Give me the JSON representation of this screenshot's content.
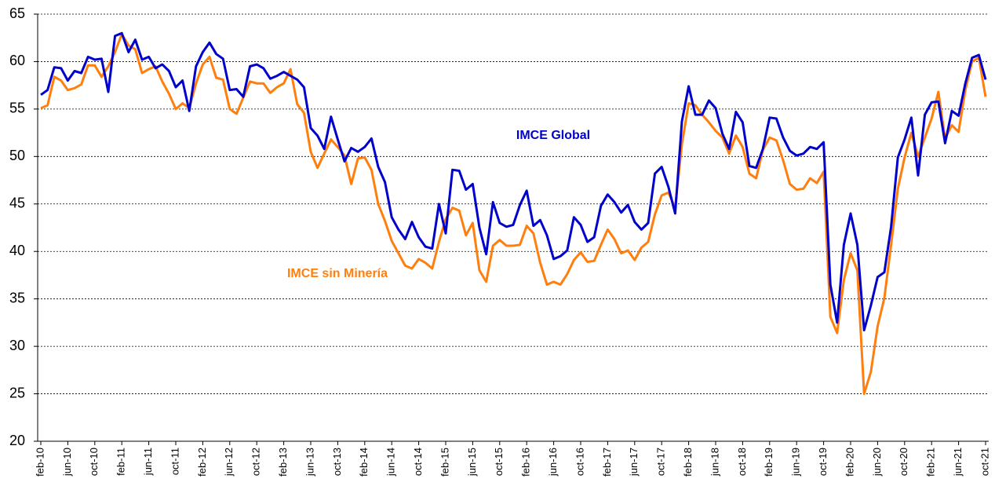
{
  "chart_data": {
    "type": "line",
    "categories": [
      "feb-10",
      null,
      null,
      null,
      "jun-10",
      null,
      null,
      null,
      "oct-10",
      null,
      null,
      null,
      "feb-11",
      null,
      null,
      null,
      "jun-11",
      null,
      null,
      null,
      "oct-11",
      null,
      null,
      null,
      "feb-12",
      null,
      null,
      null,
      "jun-12",
      null,
      null,
      null,
      "oct-12",
      null,
      null,
      null,
      "feb-13",
      null,
      null,
      null,
      "jun-13",
      null,
      null,
      null,
      "oct-13",
      null,
      null,
      null,
      "feb-14",
      null,
      null,
      null,
      "jun-14",
      null,
      null,
      null,
      "oct-14",
      null,
      null,
      null,
      "feb-15",
      null,
      null,
      null,
      "jun-15",
      null,
      null,
      null,
      "oct-15",
      null,
      null,
      null,
      "feb-16",
      null,
      null,
      null,
      "jun-16",
      null,
      null,
      null,
      "oct-16",
      null,
      null,
      null,
      "feb-17",
      null,
      null,
      null,
      "jun-17",
      null,
      null,
      null,
      "oct-17",
      null,
      null,
      null,
      "feb-18",
      null,
      null,
      null,
      "jun-18",
      null,
      null,
      null,
      "oct-18",
      null,
      null,
      null,
      "feb-19",
      null,
      null,
      null,
      "jun-19",
      null,
      null,
      null,
      "oct-19",
      null,
      null,
      null,
      "feb-20",
      null,
      null,
      null,
      "jun-20",
      null,
      null,
      null,
      "oct-20",
      null,
      null,
      null,
      "feb-21",
      null,
      null,
      null,
      "jun-21",
      null,
      null,
      null,
      "oct-21"
    ],
    "series": [
      {
        "name": "IMCE Global",
        "color": "#0000cc",
        "values": [
          56.5,
          57,
          59.4,
          59.3,
          58,
          59,
          58.8,
          60.5,
          60.2,
          60.3,
          56.8,
          62.7,
          63,
          61,
          62.3,
          60.2,
          60.5,
          59.3,
          59.7,
          59,
          57.3,
          58,
          54.8,
          59.5,
          61,
          62,
          60.8,
          60.3,
          57,
          57.1,
          56.3,
          59.5,
          59.7,
          59.3,
          58.2,
          58.5,
          58.9,
          58.5,
          58.1,
          57.3,
          53,
          52.2,
          50.8,
          54.2,
          51.8,
          49.5,
          50.9,
          50.5,
          51,
          51.9,
          48.9,
          47.3,
          43.6,
          42.3,
          41.3,
          43.1,
          41.5,
          40.5,
          40.3,
          45,
          41.9,
          48.6,
          48.5,
          46.5,
          47.1,
          42.5,
          39.7,
          45.2,
          43,
          42.6,
          42.8,
          44.9,
          46.4,
          42.7,
          43.3,
          41.7,
          39.2,
          39.5,
          40.1,
          43.6,
          42.8,
          41,
          41.5,
          44.8,
          46,
          45.2,
          44.1,
          44.9,
          43.1,
          42.3,
          43,
          48.2,
          48.9,
          46.8,
          44,
          53.7,
          57.4,
          54.4,
          54.4,
          55.9,
          55.1,
          52.4,
          50.8,
          54.7,
          53.6,
          49,
          48.8,
          50.8,
          54.1,
          54,
          52,
          50.6,
          50.1,
          50.3,
          51,
          50.8,
          51.5,
          36.5,
          32.5,
          40.7,
          44,
          40.7,
          31.7,
          34.3,
          37.3,
          37.8,
          42.6,
          49.9,
          51.8,
          54.1,
          48,
          54.4,
          55.7,
          55.8,
          51.4,
          54.8,
          54.3,
          57.7,
          60.4,
          60.7,
          58.1
        ]
      },
      {
        "name": "IMCE sin Minería",
        "color": "#ff7f0e",
        "values": [
          55.1,
          55.4,
          58.4,
          58,
          57,
          57.2,
          57.6,
          59.6,
          59.6,
          58.4,
          59.5,
          61,
          62.9,
          61.7,
          61.3,
          58.8,
          59.2,
          59.5,
          57.9,
          56.6,
          55,
          55.6,
          55.1,
          57.7,
          59.7,
          60.5,
          58.3,
          58.1,
          55,
          54.5,
          56.2,
          57.9,
          57.7,
          57.7,
          56.7,
          57.3,
          57.7,
          59.2,
          55.5,
          54.6,
          50.5,
          48.8,
          50.3,
          51.8,
          51,
          50.1,
          47.1,
          49.8,
          49.9,
          48.6,
          45,
          43.2,
          41.1,
          39.8,
          38.5,
          38.2,
          39.2,
          38.8,
          38.2,
          41,
          43.4,
          44.6,
          44.3,
          41.7,
          43,
          38,
          36.8,
          40.6,
          41.2,
          40.6,
          40.6,
          40.7,
          42.7,
          41.9,
          38.8,
          36.5,
          36.8,
          36.5,
          37.6,
          39.1,
          39.9,
          38.9,
          39,
          40.7,
          42.3,
          41.3,
          39.8,
          40.1,
          39.1,
          40.4,
          41,
          43.9,
          45.9,
          46.2,
          44.6,
          51.3,
          55.6,
          55.4,
          54.4,
          53.6,
          52.7,
          52,
          50.3,
          52.2,
          51,
          48.2,
          47.7,
          50.7,
          52,
          51.7,
          49.6,
          47.1,
          46.5,
          46.6,
          47.7,
          47.2,
          48.4,
          33.1,
          31.4,
          37,
          39.8,
          38,
          25,
          27.3,
          32.1,
          35.1,
          40.7,
          46.6,
          49.9,
          52.5,
          50,
          52,
          54,
          56.8,
          51.9,
          53.3,
          52.6,
          57,
          60,
          60.4,
          56.3
        ]
      }
    ],
    "ylim": [
      20,
      65
    ],
    "yticks": [
      20,
      25,
      30,
      35,
      40,
      45,
      50,
      55,
      60,
      65
    ],
    "grid": true
  }
}
